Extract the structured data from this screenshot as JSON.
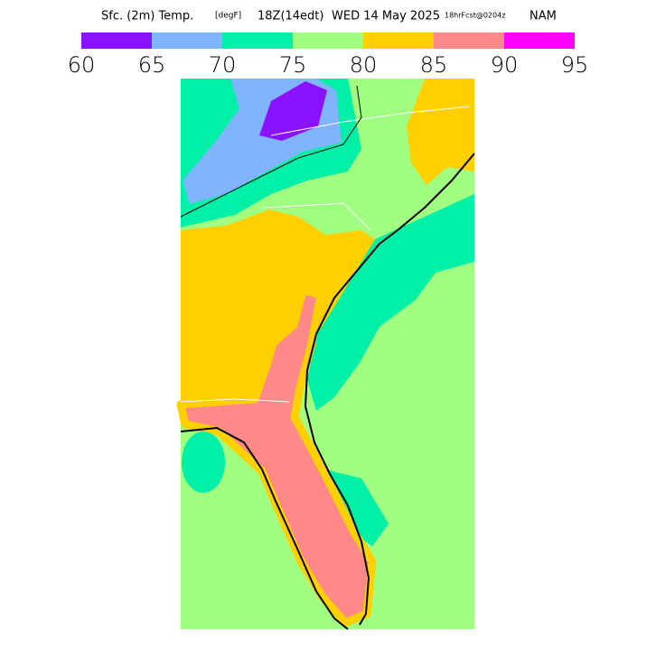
{
  "title": {
    "parts": [
      "Sfc. (2m) Temp.",
      "[degF]",
      "18Z(14edt)",
      "WED 14 May 2025",
      "18hrFcst@0204z",
      "NAM"
    ]
  },
  "colorbar": {
    "ticks": [
      60,
      65,
      70,
      75,
      80,
      85,
      90,
      95
    ],
    "colors": [
      "#8a12ff",
      "#80b4ff",
      "#00f0a8",
      "#a0ff80",
      "#ffd000",
      "#ff8888",
      "#ff00ff"
    ]
  }
}
